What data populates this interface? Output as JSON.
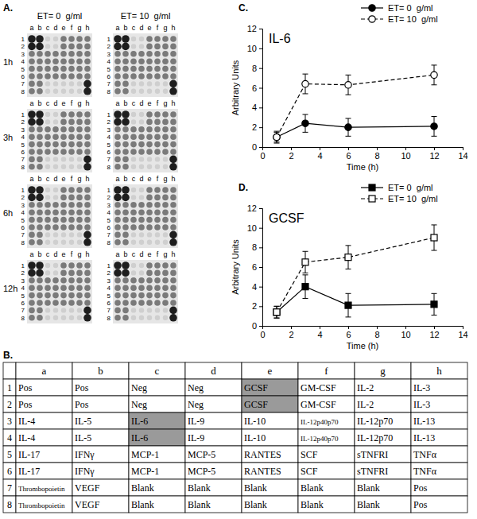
{
  "panel_a": {
    "label": "A.",
    "conditions": [
      "ET= 0  g/ml",
      "ET= 10  g/ml"
    ],
    "times": [
      "1h",
      "3h",
      "6h",
      "12h"
    ],
    "columns": [
      "a",
      "b",
      "c",
      "d",
      "e",
      "f",
      "g",
      "h"
    ],
    "rows": [
      "1",
      "2",
      "3",
      "4",
      "5",
      "6",
      "7",
      "8"
    ]
  },
  "panel_b": {
    "label": "B.",
    "columns": [
      "a",
      "b",
      "c",
      "d",
      "e",
      "f",
      "g",
      "h"
    ],
    "rows": [
      {
        "label": "1",
        "cells": [
          "Pos",
          "Pos",
          "Neg",
          "Neg",
          "GCSF",
          "GM-CSF",
          "IL-2",
          "IL-3"
        ]
      },
      {
        "label": "2",
        "cells": [
          "Pos",
          "Pos",
          "Neg",
          "Neg",
          "GCSF",
          "GM-CSF",
          "IL-2",
          "IL-3"
        ]
      },
      {
        "label": "3",
        "cells": [
          "IL-4",
          "IL-5",
          "IL-6",
          "IL-9",
          "IL-10",
          "IL-12p40p70",
          "IL-12p70",
          "IL-13"
        ]
      },
      {
        "label": "4",
        "cells": [
          "IL-4",
          "IL-5",
          "IL-6",
          "IL-9",
          "IL-10",
          "IL-12p40p70",
          "IL-12p70",
          "IL-13"
        ]
      },
      {
        "label": "5",
        "cells": [
          "IL-17",
          "IFNγ",
          "MCP-1",
          "MCP-5",
          "RANTES",
          "SCF",
          "sTNFRI",
          "TNFα"
        ]
      },
      {
        "label": "6",
        "cells": [
          "IL-17",
          "IFNγ",
          "MCP-1",
          "MCP-5",
          "RANTES",
          "SCF",
          "sTNFRI",
          "TNFα"
        ]
      },
      {
        "label": "7",
        "cells": [
          "Thrombopoietin",
          "VEGF",
          "Blank",
          "Blank",
          "Blank",
          "Blank",
          "Blank",
          "Pos"
        ]
      },
      {
        "label": "8",
        "cells": [
          "Thrombopoietin",
          "VEGF",
          "Blank",
          "Blank",
          "Blank",
          "Blank",
          "Blank",
          "Pos"
        ]
      }
    ]
  },
  "chart_data": [
    {
      "type": "line",
      "title": "IL-6",
      "annotations": [
        "C."
      ],
      "x_label": "Time (h)",
      "y_label": "Arbitrary Units",
      "x": [
        1,
        3,
        6,
        12
      ],
      "xlim": [
        0,
        14
      ],
      "xticks": [
        0,
        2,
        4,
        6,
        8,
        10,
        12,
        14
      ],
      "ylim": [
        0,
        12
      ],
      "yticks": [
        0,
        2,
        4,
        6,
        8,
        10,
        12
      ],
      "legend": "upper right",
      "series": [
        {
          "name": "ET= 0  g/ml",
          "color": "#000000",
          "marker": "circle",
          "line_style": "solid",
          "values": [
            1.0,
            2.4,
            2.0,
            2.1
          ],
          "errors": [
            0.5,
            0.9,
            0.9,
            1.0
          ]
        },
        {
          "name": "ET= 10  g/ml",
          "color": "#000000",
          "marker": "open-circle",
          "line_style": "dashed",
          "values": [
            1.0,
            6.4,
            6.3,
            7.3
          ],
          "errors": [
            0.6,
            1.0,
            1.0,
            1.0
          ]
        }
      ]
    },
    {
      "type": "line",
      "title": "GCSF",
      "annotations": [
        "D."
      ],
      "x_label": "Time (h)",
      "y_label": "Arbitrary Units",
      "x": [
        1,
        3,
        6,
        12
      ],
      "xlim": [
        0,
        14
      ],
      "xticks": [
        0,
        2,
        4,
        6,
        8,
        10,
        12,
        14
      ],
      "ylim": [
        0,
        12
      ],
      "yticks": [
        0,
        2,
        4,
        6,
        8,
        10,
        12
      ],
      "legend": "upper right",
      "series": [
        {
          "name": "ET= 0  g/ml",
          "color": "#000000",
          "marker": "square",
          "line_style": "solid",
          "values": [
            1.4,
            4.0,
            2.1,
            2.2
          ],
          "errors": [
            0.6,
            1.2,
            1.2,
            1.1
          ]
        },
        {
          "name": "ET= 10  g/ml",
          "color": "#000000",
          "marker": "open-square",
          "line_style": "dashed",
          "values": [
            1.4,
            6.5,
            7.0,
            9.0
          ],
          "errors": [
            0.6,
            1.1,
            1.2,
            1.3
          ]
        }
      ]
    }
  ]
}
